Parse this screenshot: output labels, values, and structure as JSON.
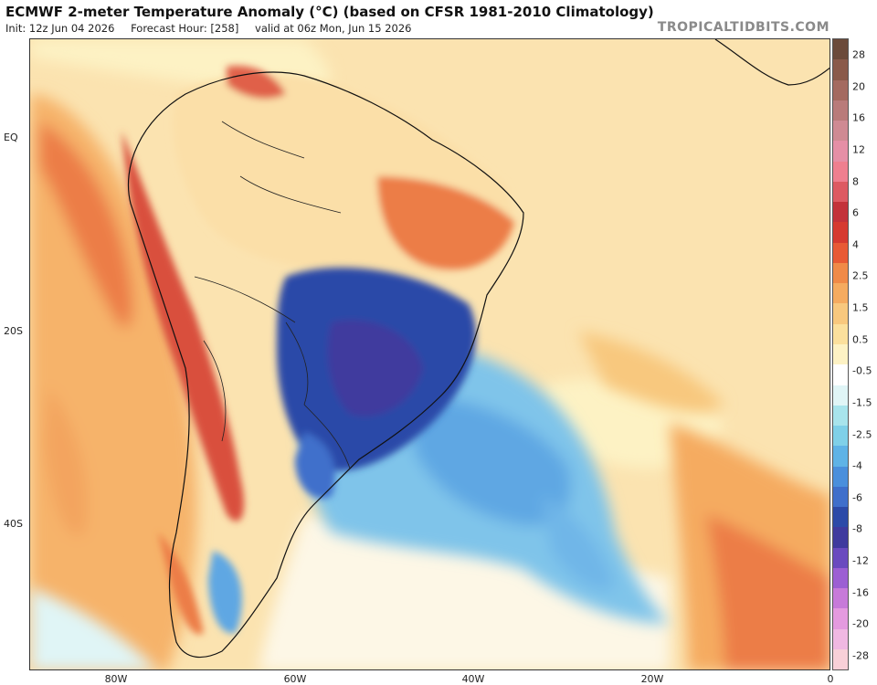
{
  "header": {
    "title": "ECMWF 2-meter Temperature Anomaly (°C) (based on CFSR 1981-2010 Climatology)",
    "init": "Init: 12z Jun 04 2026",
    "forecast_hour": "Forecast Hour: [258]",
    "valid": "valid at 06z Mon, Jun 15 2026",
    "brand": "TROPICALTIDBITS.COM"
  },
  "map": {
    "lat_labels": [
      "EQ",
      "20S",
      "40S"
    ],
    "lon_labels": [
      "80W",
      "60W",
      "40W",
      "20W",
      "0"
    ]
  },
  "colorbar": {
    "labels": [
      "28",
      "20",
      "16",
      "12",
      "8",
      "6",
      "4",
      "2.5",
      "1.5",
      "0.5",
      "-0.5",
      "-1.5",
      "-2.5",
      "-4",
      "-6",
      "-8",
      "-12",
      "-16",
      "-20",
      "-28"
    ],
    "colors": [
      "#6b4a3a",
      "#8a5a4a",
      "#a46a60",
      "#b97b7a",
      "#cf8a93",
      "#e58fa6",
      "#ef7f8f",
      "#dd5a62",
      "#c3323a",
      "#d63a30",
      "#e85a35",
      "#f08a48",
      "#f5ab60",
      "#f8c87e",
      "#fbe09d",
      "#fdf2c4",
      "#ffffff",
      "#e0f5f6",
      "#a8e4ec",
      "#7fd0e8",
      "#5fb3e6",
      "#4a8fdc",
      "#3f6fcb",
      "#2c4aa8",
      "#3f3a9e",
      "#6a4abf",
      "#9c5fd3",
      "#c77ad9",
      "#e49adf",
      "#f0b8e2",
      "#f8d0d8"
    ]
  }
}
